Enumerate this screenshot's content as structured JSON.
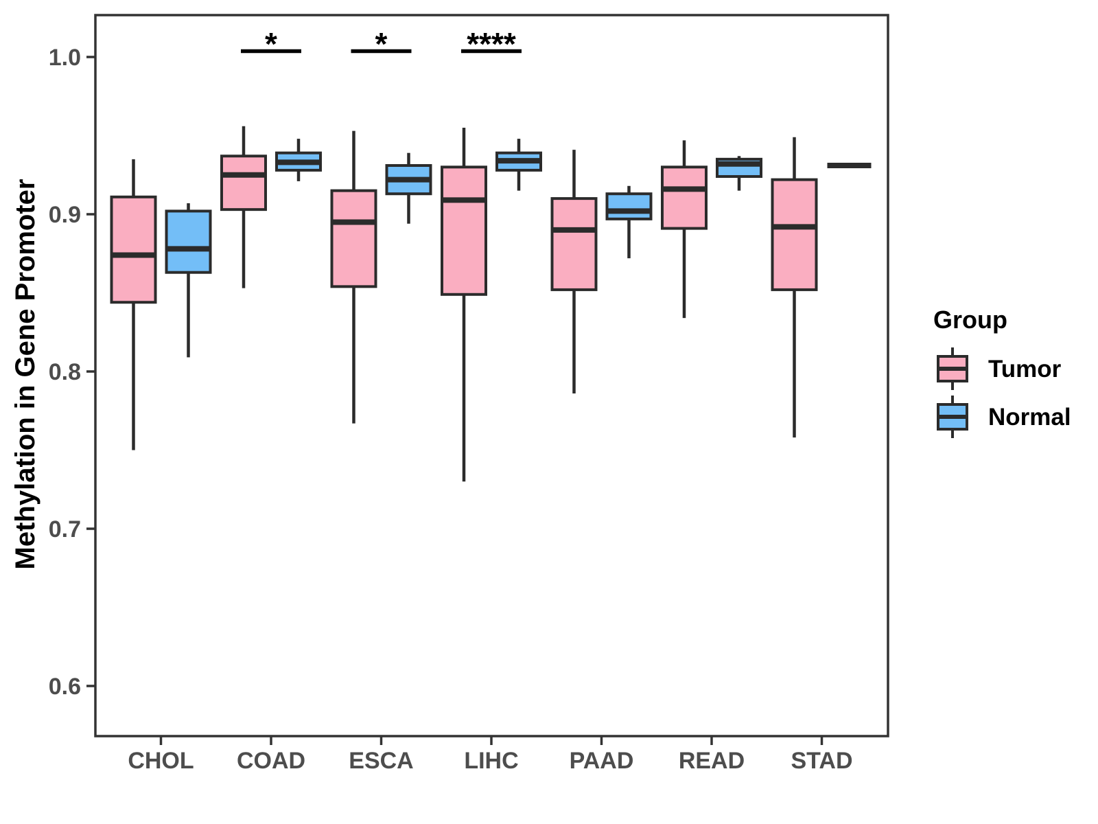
{
  "chart_data": {
    "type": "boxplot",
    "title": "",
    "xlabel": "",
    "ylabel": "Methylation in Gene Promoter",
    "categories": [
      "CHOL",
      "COAD",
      "ESCA",
      "LIHC",
      "PAAD",
      "READ",
      "STAD"
    ],
    "ylim": [
      0.565,
      1.03
    ],
    "yticks": [
      0.6,
      0.7,
      0.8,
      0.9,
      1.0
    ],
    "ytick_labels": [
      "0.6",
      "0.7",
      "0.8",
      "0.9",
      "1.0"
    ],
    "grid": false,
    "legend_position": "right",
    "series": [
      {
        "name": "Tumor",
        "color": "#FAAEC1",
        "boxes": [
          {
            "category": "CHOL",
            "low": 0.75,
            "q1": 0.844,
            "median": 0.874,
            "q3": 0.911,
            "high": 0.935
          },
          {
            "category": "COAD",
            "low": 0.853,
            "q1": 0.903,
            "median": 0.925,
            "q3": 0.937,
            "high": 0.956
          },
          {
            "category": "ESCA",
            "low": 0.767,
            "q1": 0.854,
            "median": 0.895,
            "q3": 0.915,
            "high": 0.953
          },
          {
            "category": "LIHC",
            "low": 0.73,
            "q1": 0.849,
            "median": 0.909,
            "q3": 0.93,
            "high": 0.955
          },
          {
            "category": "PAAD",
            "low": 0.786,
            "q1": 0.852,
            "median": 0.89,
            "q3": 0.91,
            "high": 0.941
          },
          {
            "category": "READ",
            "low": 0.834,
            "q1": 0.891,
            "median": 0.916,
            "q3": 0.93,
            "high": 0.947
          },
          {
            "category": "STAD",
            "low": 0.758,
            "q1": 0.852,
            "median": 0.892,
            "q3": 0.922,
            "high": 0.949
          }
        ]
      },
      {
        "name": "Normal",
        "color": "#73BEF7",
        "boxes": [
          {
            "category": "CHOL",
            "low": 0.809,
            "q1": 0.863,
            "median": 0.878,
            "q3": 0.902,
            "high": 0.907
          },
          {
            "category": "COAD",
            "low": 0.921,
            "q1": 0.928,
            "median": 0.933,
            "q3": 0.939,
            "high": 0.948
          },
          {
            "category": "ESCA",
            "low": 0.894,
            "q1": 0.913,
            "median": 0.922,
            "q3": 0.931,
            "high": 0.939
          },
          {
            "category": "LIHC",
            "low": 0.915,
            "q1": 0.928,
            "median": 0.934,
            "q3": 0.939,
            "high": 0.948
          },
          {
            "category": "PAAD",
            "low": 0.872,
            "q1": 0.897,
            "median": 0.902,
            "q3": 0.913,
            "high": 0.918
          },
          {
            "category": "READ",
            "low": 0.915,
            "q1": 0.924,
            "median": 0.932,
            "q3": 0.935,
            "high": 0.937
          },
          {
            "category": "STAD",
            "low": 0.931,
            "q1": 0.931,
            "median": 0.931,
            "q3": 0.931,
            "high": 0.931,
            "flat": true
          }
        ]
      }
    ],
    "significance": [
      {
        "category": "COAD",
        "label": "*"
      },
      {
        "category": "ESCA",
        "label": "*"
      },
      {
        "category": "LIHC",
        "label": "****"
      }
    ]
  },
  "legend": {
    "title": "Group",
    "items": [
      {
        "label": "Tumor",
        "color": "#FAAEC1"
      },
      {
        "label": "Normal",
        "color": "#73BEF7"
      }
    ]
  },
  "colors": {
    "box_stroke": "#2B2B2B",
    "axis": "#333333",
    "tick_text": "#4D4D4D",
    "sig_text": "#000000"
  }
}
